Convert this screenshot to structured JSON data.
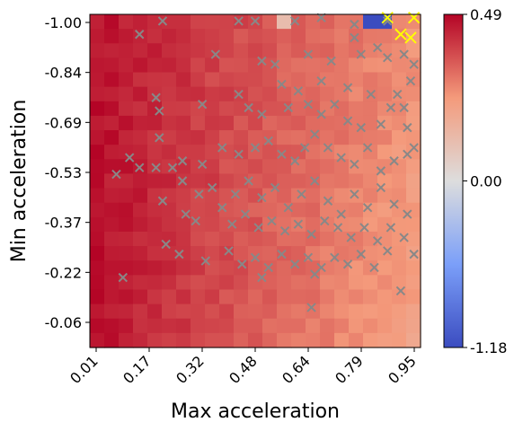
{
  "chart_data": {
    "type": "heatmap",
    "title": "",
    "xlabel": "Max acceleration",
    "ylabel": "Min acceleration",
    "x_tick_labels": [
      "0.01",
      "0.17",
      "0.32",
      "0.48",
      "0.64",
      "0.79",
      "0.95"
    ],
    "y_tick_labels": [
      "-1.00",
      "-0.84",
      "-0.69",
      "-0.53",
      "-0.37",
      "-0.22",
      "-0.06"
    ],
    "xlim": [
      0.0,
      1.0
    ],
    "ylim": [
      -1.0,
      0.0
    ],
    "grid": false,
    "colorbar": {
      "colormap": "coolwarm",
      "min": -1.18,
      "max": 0.49,
      "tick_labels": [
        "0.49",
        "0.00",
        "-1.18"
      ]
    },
    "heatmap_grid": {
      "n_cols": 23,
      "n_rows": 23,
      "low_left_value": 0.47,
      "high_right_value": 0.22,
      "special_cells": [
        {
          "col": 13,
          "row": 0,
          "value": 0.12
        },
        {
          "col": 19,
          "row": 0,
          "value": -1.18
        },
        {
          "col": 20,
          "row": 0,
          "value": -1.18
        }
      ]
    },
    "gray_markers": [
      [
        0.15,
        -0.94
      ],
      [
        0.22,
        -0.98
      ],
      [
        0.45,
        -0.98
      ],
      [
        0.5,
        -0.98
      ],
      [
        0.62,
        -0.98
      ],
      [
        0.7,
        -0.99
      ],
      [
        0.8,
        -0.97
      ],
      [
        0.9,
        -0.98
      ],
      [
        0.38,
        -0.88
      ],
      [
        0.52,
        -0.86
      ],
      [
        0.56,
        -0.85
      ],
      [
        0.66,
        -0.88
      ],
      [
        0.73,
        -0.86
      ],
      [
        0.8,
        -0.93
      ],
      [
        0.82,
        -0.88
      ],
      [
        0.87,
        -0.9
      ],
      [
        0.9,
        -0.87
      ],
      [
        0.95,
        -0.88
      ],
      [
        0.98,
        -0.85
      ],
      [
        0.97,
        -0.8
      ],
      [
        0.93,
        -0.76
      ],
      [
        0.85,
        -0.76
      ],
      [
        0.78,
        -0.78
      ],
      [
        0.7,
        -0.8
      ],
      [
        0.63,
        -0.77
      ],
      [
        0.58,
        -0.79
      ],
      [
        0.2,
        -0.75
      ],
      [
        0.21,
        -0.71
      ],
      [
        0.34,
        -0.73
      ],
      [
        0.45,
        -0.76
      ],
      [
        0.48,
        -0.72
      ],
      [
        0.52,
        -0.7
      ],
      [
        0.6,
        -0.72
      ],
      [
        0.66,
        -0.73
      ],
      [
        0.7,
        -0.7
      ],
      [
        0.74,
        -0.73
      ],
      [
        0.78,
        -0.68
      ],
      [
        0.82,
        -0.66
      ],
      [
        0.88,
        -0.67
      ],
      [
        0.91,
        -0.72
      ],
      [
        0.95,
        -0.72
      ],
      [
        0.96,
        -0.66
      ],
      [
        0.98,
        -0.6
      ],
      [
        0.12,
        -0.57
      ],
      [
        0.15,
        -0.54
      ],
      [
        0.2,
        -0.54
      ],
      [
        0.21,
        -0.63
      ],
      [
        0.25,
        -0.54
      ],
      [
        0.28,
        -0.56
      ],
      [
        0.34,
        -0.55
      ],
      [
        0.4,
        -0.6
      ],
      [
        0.45,
        -0.58
      ],
      [
        0.5,
        -0.6
      ],
      [
        0.54,
        -0.62
      ],
      [
        0.58,
        -0.58
      ],
      [
        0.62,
        -0.56
      ],
      [
        0.65,
        -0.6
      ],
      [
        0.68,
        -0.64
      ],
      [
        0.72,
        -0.6
      ],
      [
        0.76,
        -0.57
      ],
      [
        0.8,
        -0.55
      ],
      [
        0.84,
        -0.6
      ],
      [
        0.88,
        -0.53
      ],
      [
        0.92,
        -0.56
      ],
      [
        0.96,
        -0.58
      ],
      [
        0.08,
        -0.52
      ],
      [
        0.22,
        -0.44
      ],
      [
        0.28,
        -0.5
      ],
      [
        0.33,
        -0.46
      ],
      [
        0.37,
        -0.48
      ],
      [
        0.4,
        -0.42
      ],
      [
        0.44,
        -0.46
      ],
      [
        0.48,
        -0.5
      ],
      [
        0.52,
        -0.45
      ],
      [
        0.56,
        -0.48
      ],
      [
        0.6,
        -0.42
      ],
      [
        0.64,
        -0.46
      ],
      [
        0.68,
        -0.5
      ],
      [
        0.72,
        -0.44
      ],
      [
        0.76,
        -0.4
      ],
      [
        0.8,
        -0.46
      ],
      [
        0.84,
        -0.42
      ],
      [
        0.88,
        -0.48
      ],
      [
        0.92,
        -0.43
      ],
      [
        0.96,
        -0.4
      ],
      [
        0.29,
        -0.4
      ],
      [
        0.32,
        -0.38
      ],
      [
        0.43,
        -0.37
      ],
      [
        0.47,
        -0.4
      ],
      [
        0.51,
        -0.36
      ],
      [
        0.55,
        -0.38
      ],
      [
        0.59,
        -0.35
      ],
      [
        0.63,
        -0.37
      ],
      [
        0.67,
        -0.34
      ],
      [
        0.71,
        -0.38
      ],
      [
        0.75,
        -0.36
      ],
      [
        0.79,
        -0.33
      ],
      [
        0.83,
        -0.36
      ],
      [
        0.87,
        -0.32
      ],
      [
        0.91,
        -0.36
      ],
      [
        0.95,
        -0.33
      ],
      [
        0.23,
        -0.31
      ],
      [
        0.27,
        -0.28
      ],
      [
        0.35,
        -0.26
      ],
      [
        0.42,
        -0.29
      ],
      [
        0.46,
        -0.25
      ],
      [
        0.5,
        -0.27
      ],
      [
        0.54,
        -0.24
      ],
      [
        0.58,
        -0.28
      ],
      [
        0.62,
        -0.25
      ],
      [
        0.66,
        -0.27
      ],
      [
        0.7,
        -0.24
      ],
      [
        0.74,
        -0.27
      ],
      [
        0.78,
        -0.25
      ],
      [
        0.82,
        -0.28
      ],
      [
        0.86,
        -0.24
      ],
      [
        0.9,
        -0.29
      ],
      [
        0.98,
        -0.28
      ],
      [
        0.1,
        -0.21
      ],
      [
        0.52,
        -0.21
      ],
      [
        0.68,
        -0.22
      ],
      [
        0.94,
        -0.17
      ],
      [
        0.67,
        -0.12
      ]
    ],
    "yellow_markers": [
      [
        0.9,
        -0.99
      ],
      [
        0.98,
        -0.99
      ],
      [
        0.94,
        -0.94
      ],
      [
        0.97,
        -0.93
      ]
    ]
  }
}
